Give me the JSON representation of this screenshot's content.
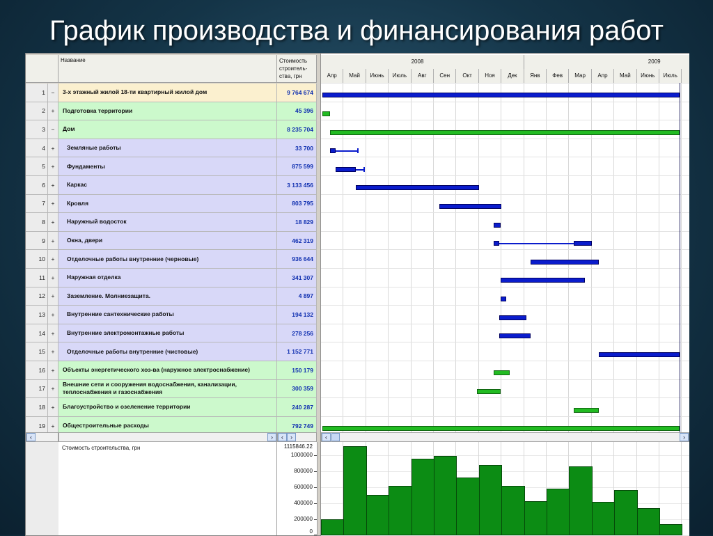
{
  "slide": {
    "title": "График производства и финансирования работ"
  },
  "table": {
    "header_name": "Название",
    "header_cost": "Стоимость строитель-ства, грн",
    "rows": [
      {
        "num": "1",
        "sign": "−",
        "name": "3-х этажный жилой 18-ти квартирный жилой дом",
        "cost": "9 764 674",
        "bg": "#fbf0cf",
        "level": 0
      },
      {
        "num": "2",
        "sign": "+",
        "name": "Подготовка территории",
        "cost": "45 396",
        "bg": "#ccf9cc",
        "level": 0
      },
      {
        "num": "3",
        "sign": "−",
        "name": "Дом",
        "cost": "8 235 704",
        "bg": "#ccf9cc",
        "level": 0
      },
      {
        "num": "4",
        "sign": "+",
        "name": "Земляные работы",
        "cost": "33 700",
        "bg": "#d8d8f8",
        "level": 1
      },
      {
        "num": "5",
        "sign": "+",
        "name": "Фундаменты",
        "cost": "875 599",
        "bg": "#d8d8f8",
        "level": 1
      },
      {
        "num": "6",
        "sign": "+",
        "name": "Каркас",
        "cost": "3 133 456",
        "bg": "#d8d8f8",
        "level": 1
      },
      {
        "num": "7",
        "sign": "+",
        "name": "Кровля",
        "cost": "803 795",
        "bg": "#d8d8f8",
        "level": 1
      },
      {
        "num": "8",
        "sign": "+",
        "name": "Наружный водосток",
        "cost": "18 829",
        "bg": "#d8d8f8",
        "level": 1
      },
      {
        "num": "9",
        "sign": "+",
        "name": "Окна, двери",
        "cost": "462 319",
        "bg": "#d8d8f8",
        "level": 1
      },
      {
        "num": "10",
        "sign": "+",
        "name": "Отделочные работы внутренние (черновые)",
        "cost": "936 644",
        "bg": "#d8d8f8",
        "level": 1
      },
      {
        "num": "11",
        "sign": "+",
        "name": "Наружная отделка",
        "cost": "341 307",
        "bg": "#d8d8f8",
        "level": 1
      },
      {
        "num": "12",
        "sign": "+",
        "name": "Заземление. Молниезащита.",
        "cost": "4 897",
        "bg": "#d8d8f8",
        "level": 1
      },
      {
        "num": "13",
        "sign": "+",
        "name": "Внутренние сантехнические работы",
        "cost": "194 132",
        "bg": "#d8d8f8",
        "level": 1
      },
      {
        "num": "14",
        "sign": "+",
        "name": "Внутренние электромонтажные работы",
        "cost": "278 256",
        "bg": "#d8d8f8",
        "level": 1
      },
      {
        "num": "15",
        "sign": "+",
        "name": "Отделочные работы внутренние (чистовые)",
        "cost": "1 152 771",
        "bg": "#d8d8f8",
        "level": 1
      },
      {
        "num": "16",
        "sign": "+",
        "name": "Объекты энергетического хоз-ва (наружное электроснабжение)",
        "cost": "150 179",
        "bg": "#ccf9cc",
        "level": 0
      },
      {
        "num": "17",
        "sign": "+",
        "name": "Внешние сети и сооружения водоснабжения, канализации, теплоснабжения и газоснабжения",
        "cost": "300 359",
        "bg": "#ccf9cc",
        "level": 0
      },
      {
        "num": "18",
        "sign": "+",
        "name": "Благоустройство и озеленение территории",
        "cost": "240 287",
        "bg": "#ccf9cc",
        "level": 0
      },
      {
        "num": "19",
        "sign": "+",
        "name": "Общестроительные расходы",
        "cost": "792 749",
        "bg": "#ccf9cc",
        "level": 0
      }
    ]
  },
  "gantt": {
    "years": [
      "2008",
      "2009"
    ],
    "months": [
      "Апр",
      "Май",
      "Июнь",
      "Июль",
      "Авг",
      "Сен",
      "Окт",
      "Ноя",
      "Дек",
      "Янв",
      "Фев",
      "Мар",
      "Апр",
      "Май",
      "Июнь",
      "Июль"
    ],
    "bars": [
      {
        "row": 0,
        "start": 0.05,
        "end": 15.9,
        "kind": "task"
      },
      {
        "row": 1,
        "start": 0.05,
        "end": 0.4,
        "kind": "summary"
      },
      {
        "row": 2,
        "start": 0.4,
        "end": 15.9,
        "kind": "summary"
      },
      {
        "row": 3,
        "start": 0.4,
        "end": 0.65,
        "kind": "task",
        "link_end": 1.65
      },
      {
        "row": 4,
        "start": 0.65,
        "end": 1.55,
        "kind": "task",
        "link_end": 1.9
      },
      {
        "row": 5,
        "start": 1.55,
        "end": 7.0,
        "kind": "task"
      },
      {
        "row": 6,
        "start": 5.25,
        "end": 8.0,
        "kind": "task"
      },
      {
        "row": 7,
        "start": 7.65,
        "end": 7.95,
        "kind": "task"
      },
      {
        "row": 8,
        "start": 7.65,
        "end": 7.9,
        "kind": "task",
        "link_end": 11.2,
        "tail_start": 11.2,
        "tail_end": 12.0
      },
      {
        "row": 9,
        "start": 9.3,
        "end": 12.3,
        "kind": "task"
      },
      {
        "row": 10,
        "start": 7.95,
        "end": 11.7,
        "kind": "task"
      },
      {
        "row": 11,
        "start": 7.95,
        "end": 8.2,
        "kind": "task"
      },
      {
        "row": 12,
        "start": 7.9,
        "end": 9.1,
        "kind": "task"
      },
      {
        "row": 13,
        "start": 7.9,
        "end": 9.3,
        "kind": "task"
      },
      {
        "row": 14,
        "start": 12.3,
        "end": 15.9,
        "kind": "task"
      },
      {
        "row": 15,
        "start": 7.65,
        "end": 8.35,
        "kind": "summary"
      },
      {
        "row": 16,
        "start": 6.9,
        "end": 7.95,
        "kind": "summary"
      },
      {
        "row": 17,
        "start": 11.2,
        "end": 12.3,
        "kind": "summary"
      },
      {
        "row": 18,
        "start": 0.05,
        "end": 15.9,
        "kind": "summary"
      }
    ]
  },
  "cost_panel": {
    "label": "Стоимость строительства, грн",
    "max_value_label": "1115846.22"
  },
  "chart_data": {
    "type": "bar",
    "title": "Стоимость строительства, грн",
    "categories": [
      "Апр",
      "Май",
      "Июнь",
      "Июль",
      "Авг",
      "Сен",
      "Окт",
      "Ноя",
      "Дек",
      "Янв",
      "Фев",
      "Мар",
      "Апр",
      "Май",
      "Июнь",
      "Июль"
    ],
    "values": [
      200000,
      1115846,
      510000,
      620000,
      960000,
      990000,
      720000,
      880000,
      620000,
      430000,
      580000,
      860000,
      420000,
      570000,
      340000,
      140000
    ],
    "ylim": [
      0,
      1115846.22
    ],
    "yticks": [
      "0",
      "200000",
      "400000",
      "600000",
      "800000",
      "1000000"
    ],
    "ytick_values": [
      0,
      200000,
      400000,
      600000,
      800000,
      1000000
    ],
    "bar_color": "#0c8c14"
  },
  "icons": {
    "scroll_left": "‹",
    "scroll_right": "›"
  }
}
